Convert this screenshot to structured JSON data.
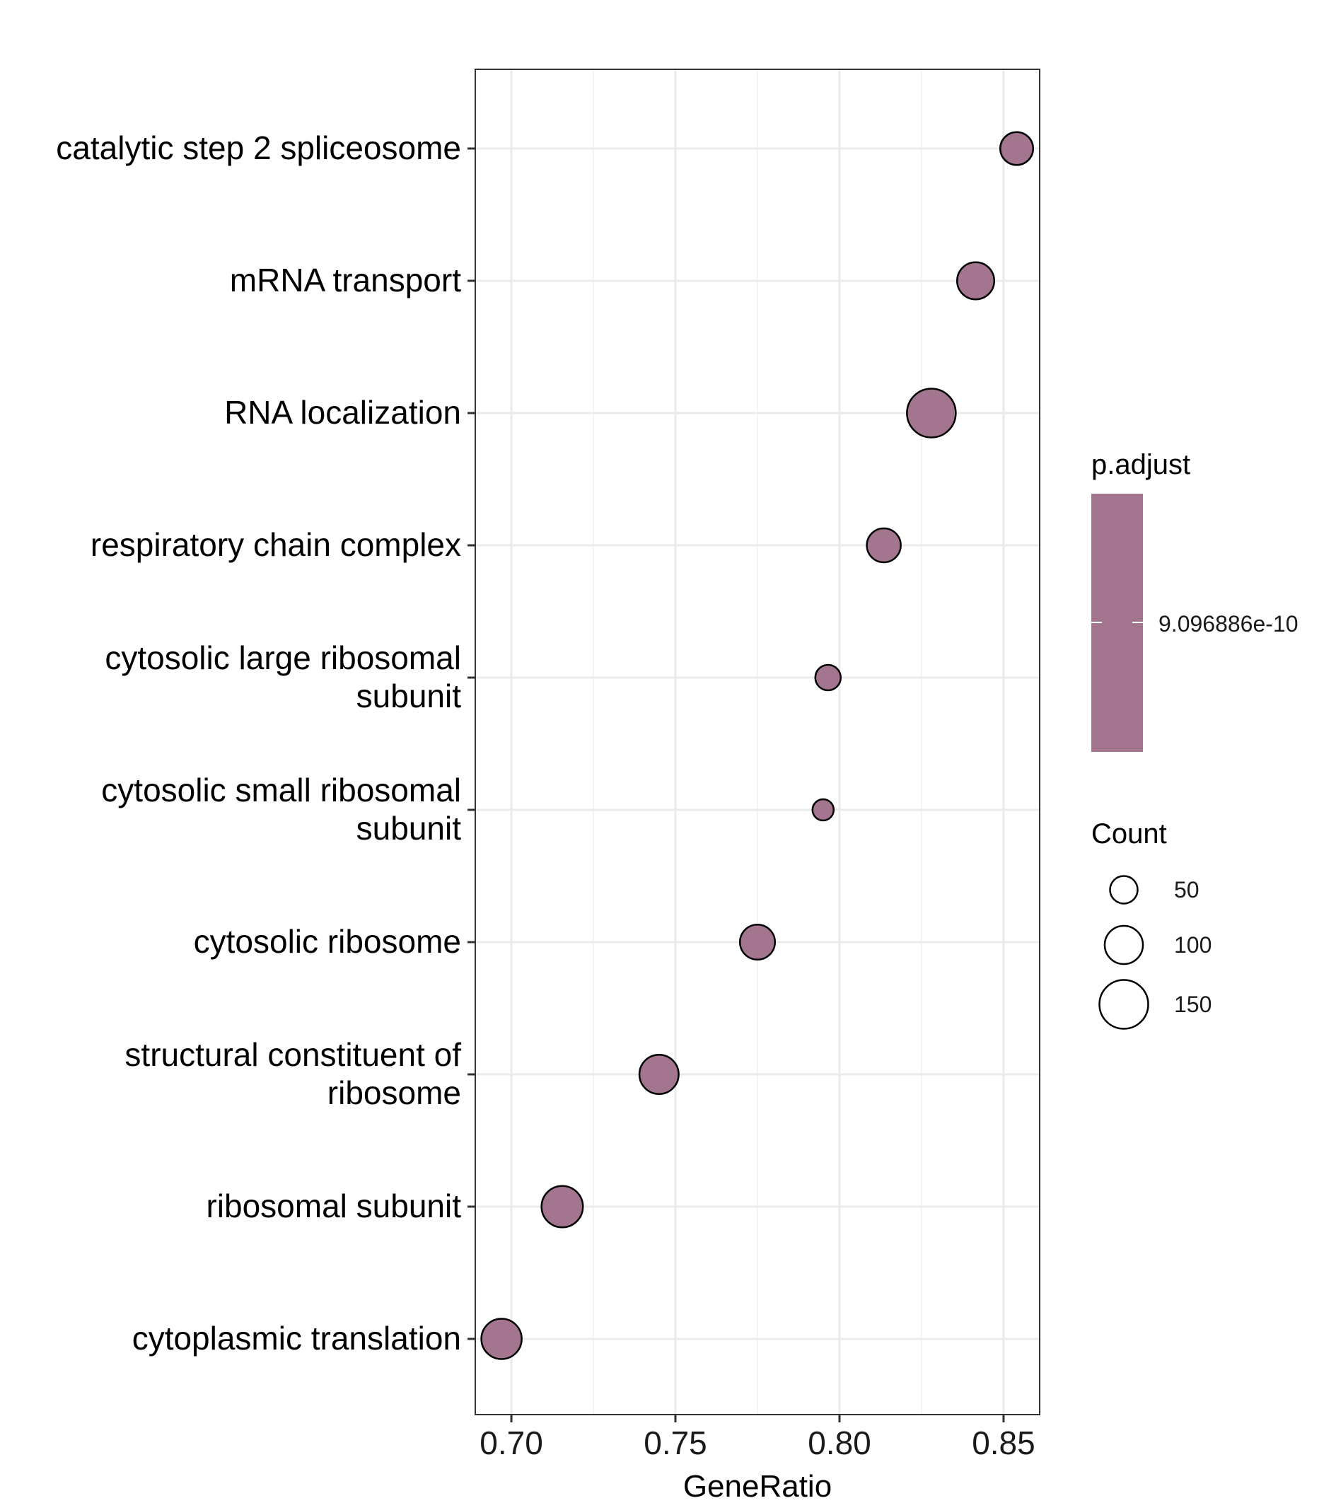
{
  "chart_data": {
    "type": "scatter",
    "xlabel": "GeneRatio",
    "xlim": [
      0.689,
      0.861
    ],
    "x_ticks": [
      {
        "value": 0.7,
        "label": "0.70"
      },
      {
        "value": 0.75,
        "label": "0.75"
      },
      {
        "value": 0.8,
        "label": "0.80"
      },
      {
        "value": 0.85,
        "label": "0.85"
      }
    ],
    "grid": true,
    "categories": [
      {
        "lines": [
          "catalytic step 2 spliceosome"
        ]
      },
      {
        "lines": [
          "mRNA transport"
        ]
      },
      {
        "lines": [
          "RNA localization"
        ]
      },
      {
        "lines": [
          "respiratory chain complex"
        ]
      },
      {
        "lines": [
          "cytosolic large ribosomal",
          "subunit"
        ]
      },
      {
        "lines": [
          "cytosolic small ribosomal",
          "subunit"
        ]
      },
      {
        "lines": [
          "cytosolic ribosome"
        ]
      },
      {
        "lines": [
          "structural constituent of",
          "ribosome"
        ]
      },
      {
        "lines": [
          "ribosomal subunit"
        ]
      },
      {
        "lines": [
          "cytoplasmic translation"
        ]
      }
    ],
    "points": [
      {
        "x": 0.854,
        "count": 75
      },
      {
        "x": 0.8415,
        "count": 95
      },
      {
        "x": 0.828,
        "count": 150
      },
      {
        "x": 0.8135,
        "count": 80
      },
      {
        "x": 0.7965,
        "count": 40
      },
      {
        "x": 0.795,
        "count": 20
      },
      {
        "x": 0.775,
        "count": 85
      },
      {
        "x": 0.745,
        "count": 105
      },
      {
        "x": 0.7155,
        "count": 115
      },
      {
        "x": 0.697,
        "count": 110
      }
    ],
    "point_fill": "#A3758E",
    "point_stroke": "#000000",
    "color_legend": {
      "title": "p.adjust",
      "color": "#A3758E",
      "tick_label": "9.096886e-10"
    },
    "size_legend": {
      "title": "Count",
      "entries": [
        {
          "count": 50,
          "label": "50"
        },
        {
          "count": 100,
          "label": "100"
        },
        {
          "count": 150,
          "label": "150"
        }
      ]
    },
    "legend_placement": "right"
  }
}
